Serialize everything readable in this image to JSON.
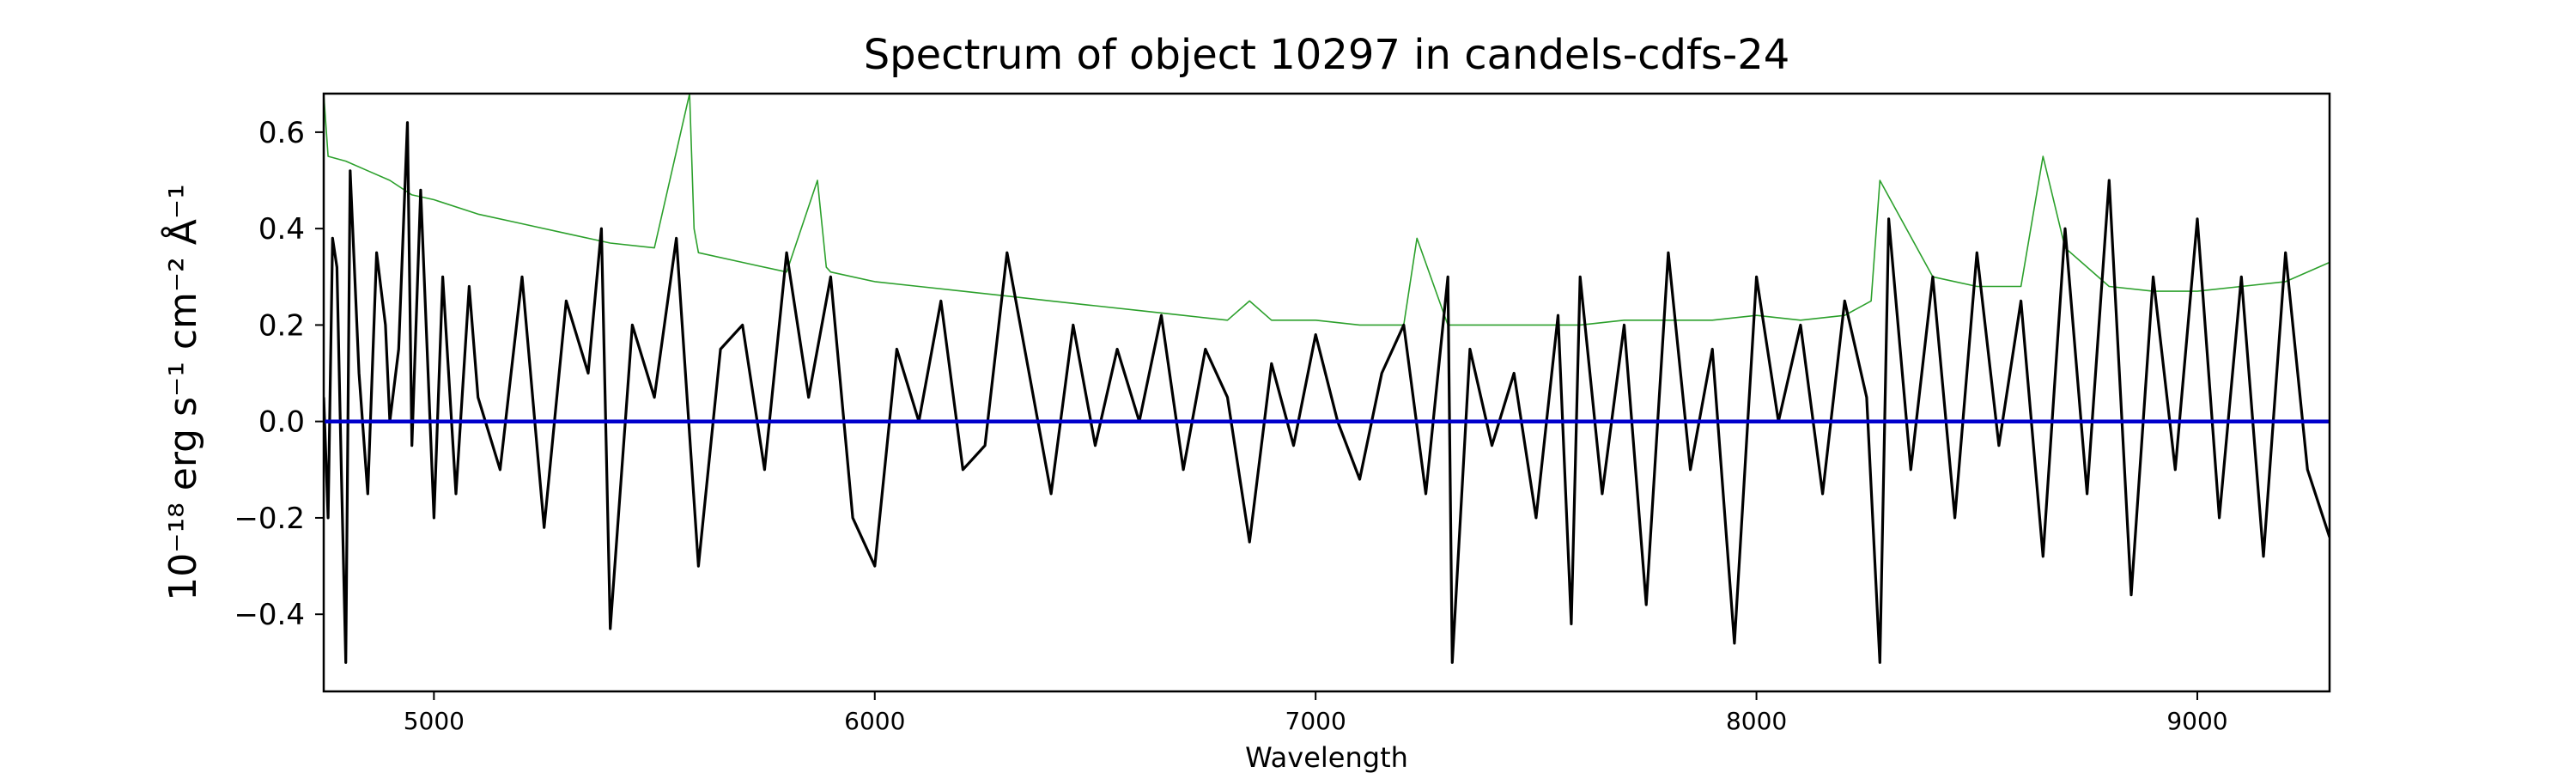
{
  "chart_data": {
    "type": "line",
    "title": "Spectrum of object 10297 in candels-cdfs-24",
    "xlabel": "Wavelength",
    "ylabel": "10⁻¹⁸ erg s⁻¹ cm⁻² Å⁻¹",
    "xlim": [
      4750,
      9300
    ],
    "ylim": [
      -0.56,
      0.68
    ],
    "xticks": [
      5000,
      6000,
      7000,
      8000,
      9000
    ],
    "xtick_labels": [
      "5000",
      "6000",
      "7000",
      "8000",
      "9000"
    ],
    "yticks": [
      -0.4,
      -0.2,
      0.0,
      0.2,
      0.4,
      0.6
    ],
    "ytick_labels": [
      "−0.4",
      "−0.2",
      "0.0",
      "0.2",
      "0.4",
      "0.6"
    ],
    "grid": false,
    "legend": "none",
    "series": [
      {
        "role": "error",
        "color": "#2ca02c",
        "x": [
          4750,
          4760,
          4800,
          4850,
          4900,
          4950,
          5000,
          5100,
          5200,
          5300,
          5400,
          5500,
          5580,
          5590,
          5600,
          5700,
          5800,
          5870,
          5890,
          5900,
          6000,
          6100,
          6200,
          6300,
          6400,
          6500,
          6600,
          6700,
          6800,
          6850,
          6900,
          7000,
          7100,
          7200,
          7230,
          7300,
          7400,
          7500,
          7600,
          7700,
          7800,
          7900,
          8000,
          8100,
          8200,
          8260,
          8280,
          8400,
          8500,
          8600,
          8650,
          8700,
          8800,
          8900,
          9000,
          9100,
          9200,
          9300
        ],
        "y": [
          0.68,
          0.55,
          0.54,
          0.52,
          0.5,
          0.47,
          0.46,
          0.43,
          0.41,
          0.39,
          0.37,
          0.36,
          0.68,
          0.4,
          0.35,
          0.33,
          0.31,
          0.5,
          0.32,
          0.31,
          0.29,
          0.28,
          0.27,
          0.26,
          0.25,
          0.24,
          0.23,
          0.22,
          0.21,
          0.25,
          0.21,
          0.21,
          0.2,
          0.2,
          0.38,
          0.2,
          0.2,
          0.2,
          0.2,
          0.21,
          0.21,
          0.21,
          0.22,
          0.21,
          0.22,
          0.25,
          0.5,
          0.3,
          0.28,
          0.28,
          0.55,
          0.36,
          0.28,
          0.27,
          0.27,
          0.28,
          0.29,
          0.33
        ]
      },
      {
        "role": "flux",
        "color": "#000000",
        "x": [
          4750,
          4760,
          4770,
          4780,
          4790,
          4800,
          4810,
          4830,
          4850,
          4870,
          4890,
          4900,
          4920,
          4940,
          4950,
          4970,
          5000,
          5020,
          5050,
          5080,
          5100,
          5150,
          5200,
          5250,
          5300,
          5350,
          5380,
          5400,
          5450,
          5500,
          5550,
          5600,
          5650,
          5700,
          5750,
          5800,
          5850,
          5900,
          5950,
          6000,
          6050,
          6100,
          6150,
          6200,
          6250,
          6300,
          6350,
          6400,
          6450,
          6500,
          6550,
          6600,
          6650,
          6700,
          6750,
          6800,
          6850,
          6900,
          6950,
          7000,
          7050,
          7100,
          7150,
          7200,
          7250,
          7300,
          7310,
          7350,
          7400,
          7450,
          7500,
          7550,
          7580,
          7600,
          7650,
          7700,
          7750,
          7800,
          7850,
          7900,
          7950,
          8000,
          8050,
          8100,
          8150,
          8200,
          8250,
          8280,
          8300,
          8350,
          8400,
          8450,
          8500,
          8550,
          8600,
          8650,
          8700,
          8750,
          8800,
          8850,
          8900,
          8950,
          9000,
          9050,
          9100,
          9150,
          9200,
          9250,
          9300
        ],
        "y": [
          0.05,
          -0.2,
          0.38,
          0.32,
          -0.1,
          -0.5,
          0.52,
          0.1,
          -0.15,
          0.35,
          0.2,
          0.0,
          0.15,
          0.62,
          -0.05,
          0.48,
          -0.2,
          0.3,
          -0.15,
          0.28,
          0.05,
          -0.1,
          0.3,
          -0.22,
          0.25,
          0.1,
          0.4,
          -0.43,
          0.2,
          0.05,
          0.38,
          -0.3,
          0.15,
          0.2,
          -0.1,
          0.35,
          0.05,
          0.3,
          -0.2,
          -0.3,
          0.15,
          0.0,
          0.25,
          -0.1,
          -0.05,
          0.35,
          0.1,
          -0.15,
          0.2,
          -0.05,
          0.15,
          0.0,
          0.22,
          -0.1,
          0.15,
          0.05,
          -0.25,
          0.12,
          -0.05,
          0.18,
          0.0,
          -0.12,
          0.1,
          0.2,
          -0.15,
          0.3,
          -0.5,
          0.15,
          -0.05,
          0.1,
          -0.2,
          0.22,
          -0.42,
          0.3,
          -0.15,
          0.2,
          -0.38,
          0.35,
          -0.1,
          0.15,
          -0.46,
          0.3,
          0.0,
          0.2,
          -0.15,
          0.25,
          0.05,
          -0.5,
          0.42,
          -0.1,
          0.3,
          -0.2,
          0.35,
          -0.05,
          0.25,
          -0.28,
          0.4,
          -0.15,
          0.5,
          -0.36,
          0.3,
          -0.1,
          0.42,
          -0.2,
          0.3,
          -0.28,
          0.35,
          -0.1,
          -0.24
        ]
      },
      {
        "role": "model",
        "color": "#0000cc",
        "x": [
          4750,
          9300
        ],
        "y": [
          0.0,
          0.0
        ]
      }
    ]
  }
}
